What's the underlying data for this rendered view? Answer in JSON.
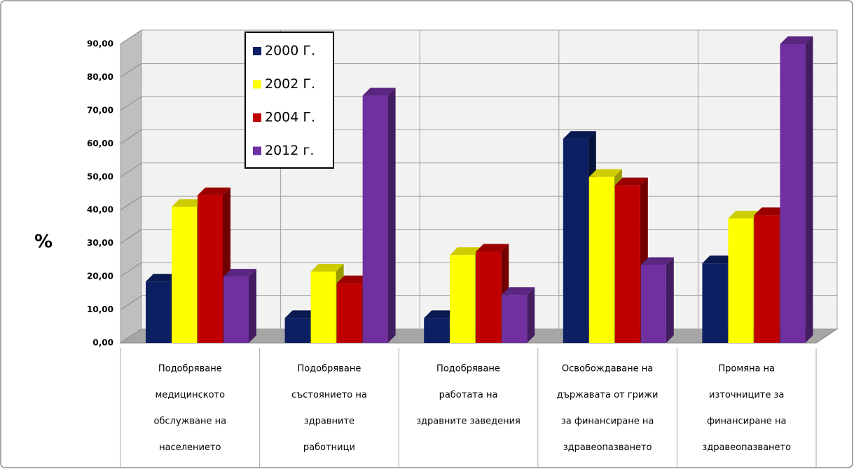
{
  "chart_data": {
    "type": "bar3d",
    "y_label": "%",
    "categories": [
      [
        "Подобряване",
        "медицинското",
        "обслужване на",
        "населението"
      ],
      [
        "Подобряване",
        "състоянието на",
        "здравните",
        "работници"
      ],
      [
        "Подобряване",
        "работата на",
        "здравните заведения"
      ],
      [
        "Освобождаване на",
        "държавата от грижи",
        "за финансиране  на",
        "здравеопазването"
      ],
      [
        "Промяна на",
        "източниците за",
        "финансиране на",
        "здравеопазването"
      ]
    ],
    "series": [
      {
        "name": "2000 Г.",
        "color": "#0d1f63",
        "values": [
          18.5,
          7.5,
          7.5,
          61.5,
          24
        ]
      },
      {
        "name": "2002 Г.",
        "color": "#ffff00",
        "values": [
          41,
          21.5,
          26.5,
          50,
          37.5
        ]
      },
      {
        "name": "2004 Г.",
        "color": "#c00000",
        "values": [
          44.5,
          18,
          27.5,
          47.5,
          38.5
        ]
      },
      {
        "name": "2012 г.",
        "color": "#7030a0",
        "values": [
          20,
          74.5,
          14.5,
          23.5,
          90
        ]
      }
    ],
    "ylim": [
      0,
      90
    ],
    "yticks": [
      {
        "value": 0,
        "label": "0,00"
      },
      {
        "value": 10,
        "label": "10,00"
      },
      {
        "value": 20,
        "label": "20,00"
      },
      {
        "value": 30,
        "label": "30,00"
      },
      {
        "value": 40,
        "label": "40,00"
      },
      {
        "value": 50,
        "label": "50,00"
      },
      {
        "value": 60,
        "label": "60,00"
      },
      {
        "value": 70,
        "label": "70,00"
      },
      {
        "value": 80,
        "label": "80,00"
      },
      {
        "value": 90,
        "label": "90,00"
      }
    ],
    "grid": true
  }
}
